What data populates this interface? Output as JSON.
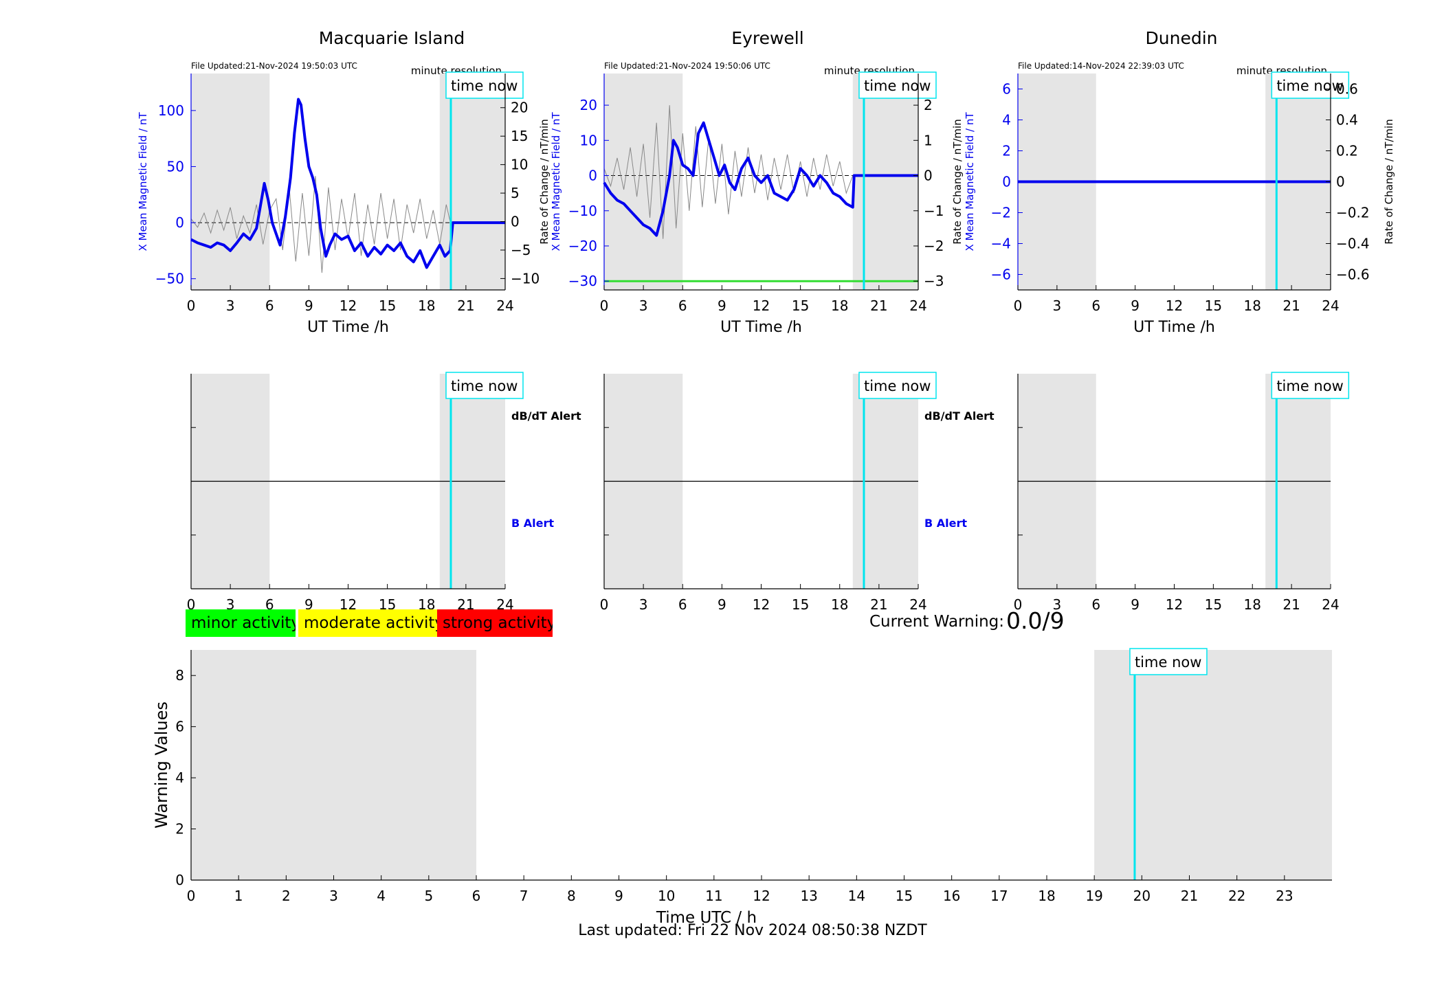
{
  "colors": {
    "shade": "#e5e5e5",
    "mean_field": "#0000ee",
    "rate": "#888888",
    "time_now": "#00e5ee",
    "threshold": "#33dd33",
    "minor": "#00ff00",
    "moderate": "#ffff00",
    "strong": "#ff0000"
  },
  "icons": {
    "time_marker": "vertical-line"
  },
  "common": {
    "time_now_label": "time now",
    "resolution_label": "minute resolution",
    "x_axis_label": "UT Time /h",
    "left_axis_label": "X Mean Magnetic Field / nT",
    "right_axis_label": "Rate of Change / nT/min",
    "dbdt_alert_label": "dB/dT Alert",
    "b_alert_label": "B Alert"
  },
  "legend": {
    "minor": "minor activity",
    "moderate": "moderate activity",
    "strong": "strong activity"
  },
  "current_warning": {
    "label": "Current Warning:",
    "value": "0.0/9"
  },
  "footer": {
    "last_updated": "Last updated: Fri 22 Nov 2024 08:50:38 NZDT"
  },
  "chart_data": [
    {
      "type": "line",
      "title": "Macquarie Island",
      "file_updated": "File Updated:21-Nov-2024 19:50:03 UTC",
      "xlabel": "UT Time /h",
      "ylabel": "X Mean Magnetic Field / nT",
      "y2label": "Rate of Change / nT/min",
      "xlim": [
        0,
        24
      ],
      "xticks": [
        0,
        3,
        6,
        9,
        12,
        15,
        18,
        21,
        24
      ],
      "ylim": [
        -60,
        133
      ],
      "yticks": [
        -50,
        0,
        50,
        100
      ],
      "y2lim": [
        -12,
        26
      ],
      "y2ticks": [
        -10,
        -5,
        0,
        5,
        10,
        15,
        20
      ],
      "shaded_ranges": [
        [
          0,
          6
        ],
        [
          19,
          24
        ]
      ],
      "time_now": 19.85,
      "mean_field_series": {
        "x": [
          0,
          0.5,
          1,
          1.5,
          2,
          2.5,
          3,
          3.5,
          4,
          4.5,
          5,
          5.3,
          5.6,
          5.9,
          6.2,
          6.5,
          6.8,
          7.2,
          7.6,
          7.9,
          8.2,
          8.4,
          8.7,
          9,
          9.3,
          9.6,
          9.9,
          10.3,
          10.6,
          11,
          11.5,
          12,
          12.5,
          13,
          13.5,
          14,
          14.5,
          15,
          15.5,
          16,
          16.5,
          17,
          17.5,
          18,
          18.5,
          19,
          19.4,
          19.8,
          20,
          21,
          22,
          23,
          24
        ],
        "y": [
          -15,
          -18,
          -20,
          -22,
          -18,
          -20,
          -25,
          -18,
          -10,
          -15,
          -5,
          15,
          35,
          20,
          0,
          -10,
          -20,
          5,
          40,
          80,
          110,
          105,
          75,
          50,
          40,
          25,
          -5,
          -30,
          -20,
          -10,
          -15,
          -12,
          -25,
          -18,
          -30,
          -22,
          -28,
          -20,
          -25,
          -18,
          -30,
          -35,
          -25,
          -40,
          -30,
          -20,
          -30,
          -25,
          0,
          0,
          0,
          0,
          0
        ]
      },
      "rate_series": {
        "x": [
          0,
          0.5,
          1,
          1.5,
          2,
          2.5,
          3,
          3.5,
          4,
          4.5,
          5,
          5.5,
          6,
          6.5,
          7,
          7.5,
          8,
          8.5,
          9,
          9.5,
          10,
          10.5,
          11,
          11.5,
          12,
          12.5,
          13,
          13.5,
          14,
          14.5,
          15,
          15.5,
          16,
          16.5,
          17,
          17.5,
          18,
          18.5,
          19,
          19.5,
          19.8
        ],
        "y": [
          0.5,
          -1,
          1.5,
          -2,
          2,
          -1.5,
          2.5,
          -3,
          1,
          -2,
          3,
          -4,
          2,
          4,
          -5,
          6,
          -7,
          5,
          -6,
          8,
          -9,
          6,
          -5,
          4,
          -3,
          5,
          -6,
          3,
          -4,
          5,
          -3,
          4,
          -5,
          3,
          -2,
          4,
          -3,
          2,
          -4,
          3,
          0
        ]
      }
    },
    {
      "type": "line",
      "title": "Eyrewell",
      "file_updated": "File Updated:21-Nov-2024 19:50:06 UTC",
      "xlabel": "UT Time /h",
      "ylabel": "X Mean Magnetic Field / nT",
      "y2label": "Rate of Change / nT/min",
      "xlim": [
        0,
        24
      ],
      "xticks": [
        0,
        3,
        6,
        9,
        12,
        15,
        18,
        21,
        24
      ],
      "ylim": [
        -32.5,
        29
      ],
      "yticks": [
        -30,
        -20,
        -10,
        0,
        10,
        20
      ],
      "y2lim": [
        -3.25,
        2.9
      ],
      "y2ticks": [
        -3,
        -2,
        -1,
        0,
        1,
        2
      ],
      "threshold_y2": -3,
      "shaded_ranges": [
        [
          0,
          6
        ],
        [
          19,
          24
        ]
      ],
      "time_now": 19.85,
      "mean_field_series": {
        "x": [
          0,
          0.5,
          1,
          1.5,
          2,
          2.5,
          3,
          3.5,
          4,
          4.5,
          5,
          5.3,
          5.6,
          6,
          6.4,
          6.8,
          7.2,
          7.6,
          8,
          8.4,
          8.8,
          9.2,
          9.6,
          10,
          10.5,
          11,
          11.5,
          12,
          12.5,
          13,
          13.5,
          14,
          14.5,
          15,
          15.5,
          16,
          16.5,
          17,
          17.5,
          18,
          18.5,
          19,
          19.1,
          20,
          21,
          22,
          23,
          24
        ],
        "y": [
          -2,
          -5,
          -7,
          -8,
          -10,
          -12,
          -14,
          -15,
          -17,
          -10,
          0,
          10,
          8,
          3,
          2,
          0,
          12,
          15,
          10,
          5,
          0,
          3,
          -2,
          -4,
          2,
          5,
          0,
          -2,
          0,
          -5,
          -6,
          -7,
          -4,
          2,
          0,
          -3,
          0,
          -2,
          -5,
          -6,
          -8,
          -9,
          0,
          0,
          0,
          0,
          0,
          0
        ]
      },
      "rate_series": {
        "x": [
          0,
          0.5,
          1,
          1.5,
          2,
          2.5,
          3,
          3.5,
          4,
          4.5,
          5,
          5.5,
          6,
          6.5,
          7,
          7.5,
          8,
          8.5,
          9,
          9.5,
          10,
          10.5,
          11,
          11.5,
          12,
          12.5,
          13,
          13.5,
          14,
          14.5,
          15,
          15.5,
          16,
          16.5,
          17,
          17.5,
          18,
          18.5,
          19
        ],
        "y": [
          0.2,
          -0.3,
          0.5,
          -0.4,
          0.8,
          -0.6,
          0.9,
          -1.2,
          1.5,
          -1.8,
          2.0,
          -1.5,
          1.2,
          -1.0,
          1.4,
          -0.9,
          1.1,
          -0.8,
          0.9,
          -1.1,
          0.7,
          -0.6,
          0.8,
          -0.5,
          0.6,
          -0.7,
          0.5,
          -0.4,
          0.6,
          -0.5,
          0.4,
          -0.6,
          0.5,
          -0.4,
          0.6,
          -0.3,
          0.4,
          -0.5,
          0
        ]
      }
    },
    {
      "type": "line",
      "title": "Dunedin",
      "file_updated": "File Updated:14-Nov-2024 22:39:03 UTC",
      "xlabel": "UT Time /h",
      "ylabel": "X Mean Magnetic Field / nT",
      "y2label": "Rate of Change / nT/min",
      "xlim": [
        0,
        24
      ],
      "xticks": [
        0,
        3,
        6,
        9,
        12,
        15,
        18,
        21,
        24
      ],
      "ylim": [
        -7,
        7
      ],
      "yticks": [
        -6,
        -4,
        -2,
        0,
        2,
        4,
        6
      ],
      "y2lim": [
        -0.7,
        0.7
      ],
      "y2ticks": [
        -0.6,
        -0.4,
        -0.2,
        0,
        0.2,
        0.4,
        0.6
      ],
      "shaded_ranges": [
        [
          0,
          6
        ],
        [
          19,
          24
        ]
      ],
      "time_now": 19.85,
      "mean_field_series": {
        "x": [
          0,
          24
        ],
        "y": [
          0,
          0
        ]
      },
      "rate_series": {
        "x": [
          0,
          24
        ],
        "y": [
          0,
          0
        ]
      }
    },
    {
      "type": "line",
      "title": "",
      "xlim": [
        0,
        24
      ],
      "xticks": [
        0,
        3,
        6,
        9,
        12,
        15,
        18,
        21,
        24
      ],
      "shaded_ranges": [
        [
          0,
          6
        ],
        [
          19,
          24
        ]
      ],
      "time_now": 19.85,
      "upper_label": "dB/dT Alert",
      "lower_label": "B Alert"
    },
    {
      "type": "line",
      "title": "",
      "xlim": [
        0,
        24
      ],
      "xticks": [
        0,
        3,
        6,
        9,
        12,
        15,
        18,
        21,
        24
      ],
      "shaded_ranges": [
        [
          0,
          6
        ],
        [
          19,
          24
        ]
      ],
      "time_now": 19.85,
      "upper_label": "dB/dT Alert",
      "lower_label": "B Alert"
    },
    {
      "type": "line",
      "title": "",
      "xlim": [
        0,
        24
      ],
      "xticks": [
        0,
        3,
        6,
        9,
        12,
        15,
        18,
        21,
        24
      ],
      "shaded_ranges": [
        [
          0,
          6
        ],
        [
          19,
          24
        ]
      ],
      "time_now": 19.85
    },
    {
      "type": "bar",
      "title": "",
      "xlabel": "Time UTC / h",
      "ylabel": "Warning Values",
      "xlim": [
        0,
        24
      ],
      "xticks": [
        0,
        1,
        2,
        3,
        4,
        5,
        6,
        7,
        8,
        9,
        10,
        11,
        12,
        13,
        14,
        15,
        16,
        17,
        18,
        19,
        20,
        21,
        22,
        23
      ],
      "ylim": [
        0,
        9
      ],
      "yticks": [
        0,
        2,
        4,
        6,
        8
      ],
      "shaded_ranges": [
        [
          0,
          6
        ],
        [
          19,
          24
        ]
      ],
      "time_now": 19.85,
      "values": []
    }
  ]
}
